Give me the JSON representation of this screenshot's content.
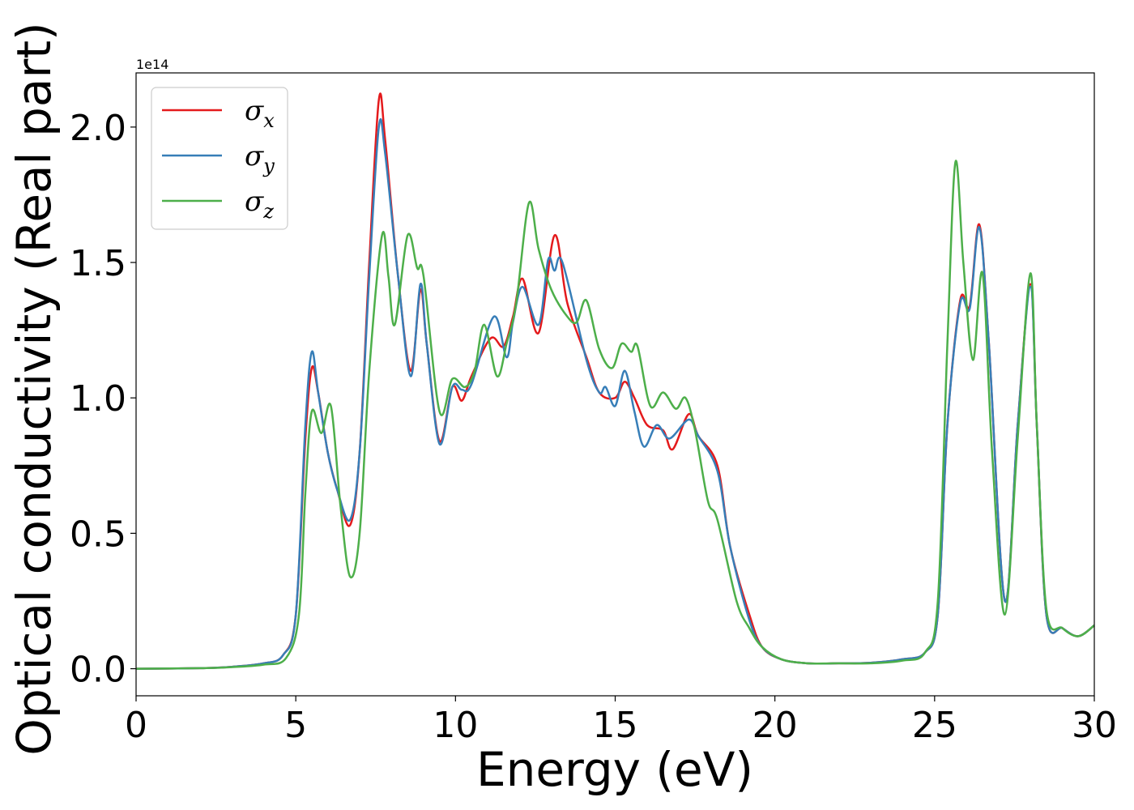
{
  "chart_data": {
    "type": "line",
    "xlabel": "Energy (eV)",
    "ylabel": "Optical conductivity (Real part)",
    "y_offset_label": "1e14",
    "xlim": [
      0,
      30
    ],
    "ylim": [
      -0.1,
      2.2
    ],
    "x_ticks": [
      0,
      5,
      10,
      15,
      20,
      25,
      30
    ],
    "x_tick_labels": [
      "0",
      "5",
      "10",
      "15",
      "20",
      "25",
      "30"
    ],
    "y_ticks": [
      0.0,
      0.5,
      1.0,
      1.5,
      2.0
    ],
    "y_tick_labels": [
      "0.0",
      "0.5",
      "1.0",
      "1.5",
      "2.0"
    ],
    "grid": false,
    "legend_position": "top-left",
    "series": [
      {
        "name_base": "σ",
        "name_sub": "x",
        "color": "#e41a1c",
        "points": [
          [
            0,
            0
          ],
          [
            2,
            0.002
          ],
          [
            3,
            0.007
          ],
          [
            4,
            0.02
          ],
          [
            4.6,
            0.05
          ],
          [
            5,
            0.2
          ],
          [
            5.3,
            0.85
          ],
          [
            5.5,
            1.11
          ],
          [
            5.7,
            1.02
          ],
          [
            6,
            0.8
          ],
          [
            6.3,
            0.66
          ],
          [
            6.7,
            0.53
          ],
          [
            7,
            0.8
          ],
          [
            7.3,
            1.5
          ],
          [
            7.6,
            2.1
          ],
          [
            7.8,
            1.95
          ],
          [
            8.2,
            1.45
          ],
          [
            8.6,
            1.1
          ],
          [
            8.9,
            1.4
          ],
          [
            9.1,
            1.2
          ],
          [
            9.5,
            0.84
          ],
          [
            9.9,
            1.04
          ],
          [
            10.2,
            0.99
          ],
          [
            10.5,
            1.08
          ],
          [
            11.1,
            1.22
          ],
          [
            11.5,
            1.19
          ],
          [
            11.8,
            1.3
          ],
          [
            12.1,
            1.44
          ],
          [
            12.6,
            1.24
          ],
          [
            13.1,
            1.6
          ],
          [
            13.5,
            1.35
          ],
          [
            14.1,
            1.15
          ],
          [
            14.5,
            1.02
          ],
          [
            15,
            1.0
          ],
          [
            15.3,
            1.06
          ],
          [
            15.6,
            1.0
          ],
          [
            16,
            0.9
          ],
          [
            16.5,
            0.88
          ],
          [
            16.8,
            0.81
          ],
          [
            17.3,
            0.94
          ],
          [
            17.6,
            0.86
          ],
          [
            18.2,
            0.75
          ],
          [
            18.6,
            0.45
          ],
          [
            19.2,
            0.2
          ],
          [
            19.6,
            0.08
          ],
          [
            20.2,
            0.035
          ],
          [
            21,
            0.02
          ],
          [
            22,
            0.02
          ],
          [
            23,
            0.022
          ],
          [
            24,
            0.035
          ],
          [
            24.7,
            0.06
          ],
          [
            25.1,
            0.2
          ],
          [
            25.4,
            0.9
          ],
          [
            25.8,
            1.36
          ],
          [
            26.1,
            1.34
          ],
          [
            26.4,
            1.64
          ],
          [
            26.7,
            1.2
          ],
          [
            27.2,
            0.25
          ],
          [
            27.6,
            0.9
          ],
          [
            28,
            1.42
          ],
          [
            28.2,
            0.9
          ],
          [
            28.5,
            0.2
          ],
          [
            29,
            0.15
          ],
          [
            29.5,
            0.12
          ],
          [
            30,
            0.16
          ]
        ]
      },
      {
        "name_base": "σ",
        "name_sub": "y",
        "color": "#377eb8",
        "points": [
          [
            0,
            0
          ],
          [
            2,
            0.002
          ],
          [
            3,
            0.007
          ],
          [
            4,
            0.02
          ],
          [
            4.6,
            0.05
          ],
          [
            5,
            0.2
          ],
          [
            5.3,
            0.9
          ],
          [
            5.5,
            1.17
          ],
          [
            5.7,
            1.02
          ],
          [
            6,
            0.8
          ],
          [
            6.3,
            0.66
          ],
          [
            6.7,
            0.55
          ],
          [
            7,
            0.8
          ],
          [
            7.3,
            1.45
          ],
          [
            7.6,
            2.0
          ],
          [
            7.8,
            1.9
          ],
          [
            8.2,
            1.45
          ],
          [
            8.6,
            1.08
          ],
          [
            8.9,
            1.42
          ],
          [
            9.1,
            1.2
          ],
          [
            9.5,
            0.83
          ],
          [
            9.9,
            1.04
          ],
          [
            10.2,
            1.03
          ],
          [
            10.5,
            1.05
          ],
          [
            11.2,
            1.3
          ],
          [
            11.6,
            1.15
          ],
          [
            11.8,
            1.28
          ],
          [
            12.1,
            1.41
          ],
          [
            12.6,
            1.27
          ],
          [
            12.9,
            1.51
          ],
          [
            13.1,
            1.47
          ],
          [
            13.35,
            1.5
          ],
          [
            14.1,
            1.14
          ],
          [
            14.5,
            1.02
          ],
          [
            14.7,
            1.04
          ],
          [
            15,
            0.97
          ],
          [
            15.3,
            1.1
          ],
          [
            15.6,
            0.95
          ],
          [
            15.9,
            0.82
          ],
          [
            16.3,
            0.9
          ],
          [
            16.7,
            0.85
          ],
          [
            17.3,
            0.92
          ],
          [
            17.6,
            0.86
          ],
          [
            18.2,
            0.73
          ],
          [
            18.6,
            0.45
          ],
          [
            19.2,
            0.18
          ],
          [
            19.6,
            0.08
          ],
          [
            20.2,
            0.035
          ],
          [
            21,
            0.02
          ],
          [
            22,
            0.02
          ],
          [
            23,
            0.022
          ],
          [
            24,
            0.035
          ],
          [
            24.7,
            0.06
          ],
          [
            25.1,
            0.2
          ],
          [
            25.4,
            0.9
          ],
          [
            25.8,
            1.35
          ],
          [
            26.1,
            1.33
          ],
          [
            26.4,
            1.63
          ],
          [
            26.7,
            1.2
          ],
          [
            27.2,
            0.25
          ],
          [
            27.6,
            0.9
          ],
          [
            28,
            1.41
          ],
          [
            28.2,
            0.9
          ],
          [
            28.5,
            0.2
          ],
          [
            29,
            0.15
          ],
          [
            29.5,
            0.12
          ],
          [
            30,
            0.16
          ]
        ]
      },
      {
        "name_base": "σ",
        "name_sub": "z",
        "color": "#4daf4a",
        "points": [
          [
            0,
            0
          ],
          [
            2,
            0.002
          ],
          [
            3,
            0.006
          ],
          [
            4,
            0.015
          ],
          [
            4.7,
            0.04
          ],
          [
            5.1,
            0.2
          ],
          [
            5.3,
            0.65
          ],
          [
            5.5,
            0.95
          ],
          [
            5.8,
            0.87
          ],
          [
            6.1,
            0.97
          ],
          [
            6.4,
            0.6
          ],
          [
            6.7,
            0.34
          ],
          [
            7,
            0.5
          ],
          [
            7.3,
            1.1
          ],
          [
            7.7,
            1.6
          ],
          [
            7.9,
            1.45
          ],
          [
            8.1,
            1.27
          ],
          [
            8.5,
            1.6
          ],
          [
            8.8,
            1.48
          ],
          [
            9,
            1.45
          ],
          [
            9.5,
            0.95
          ],
          [
            9.9,
            1.07
          ],
          [
            10.3,
            1.04
          ],
          [
            10.6,
            1.1
          ],
          [
            10.9,
            1.27
          ],
          [
            11.3,
            1.08
          ],
          [
            11.6,
            1.2
          ],
          [
            11.9,
            1.35
          ],
          [
            12.3,
            1.72
          ],
          [
            12.6,
            1.55
          ],
          [
            13,
            1.4
          ],
          [
            13.5,
            1.3
          ],
          [
            13.8,
            1.28
          ],
          [
            14.1,
            1.36
          ],
          [
            14.5,
            1.18
          ],
          [
            14.9,
            1.11
          ],
          [
            15.2,
            1.2
          ],
          [
            15.5,
            1.17
          ],
          [
            15.7,
            1.19
          ],
          [
            16.1,
            0.97
          ],
          [
            16.5,
            1.02
          ],
          [
            16.9,
            0.96
          ],
          [
            17.2,
            1.0
          ],
          [
            17.5,
            0.88
          ],
          [
            17.9,
            0.62
          ],
          [
            18.2,
            0.55
          ],
          [
            18.8,
            0.25
          ],
          [
            19.2,
            0.15
          ],
          [
            19.6,
            0.08
          ],
          [
            20.2,
            0.035
          ],
          [
            21,
            0.02
          ],
          [
            22,
            0.02
          ],
          [
            23,
            0.02
          ],
          [
            24,
            0.03
          ],
          [
            24.7,
            0.06
          ],
          [
            25.1,
            0.25
          ],
          [
            25.4,
            1.2
          ],
          [
            25.65,
            1.87
          ],
          [
            25.9,
            1.5
          ],
          [
            26.2,
            1.14
          ],
          [
            26.5,
            1.46
          ],
          [
            26.8,
            0.8
          ],
          [
            27.2,
            0.2
          ],
          [
            27.6,
            0.85
          ],
          [
            28,
            1.46
          ],
          [
            28.2,
            0.9
          ],
          [
            28.5,
            0.22
          ],
          [
            29,
            0.15
          ],
          [
            29.5,
            0.12
          ],
          [
            30,
            0.16
          ]
        ]
      }
    ]
  }
}
